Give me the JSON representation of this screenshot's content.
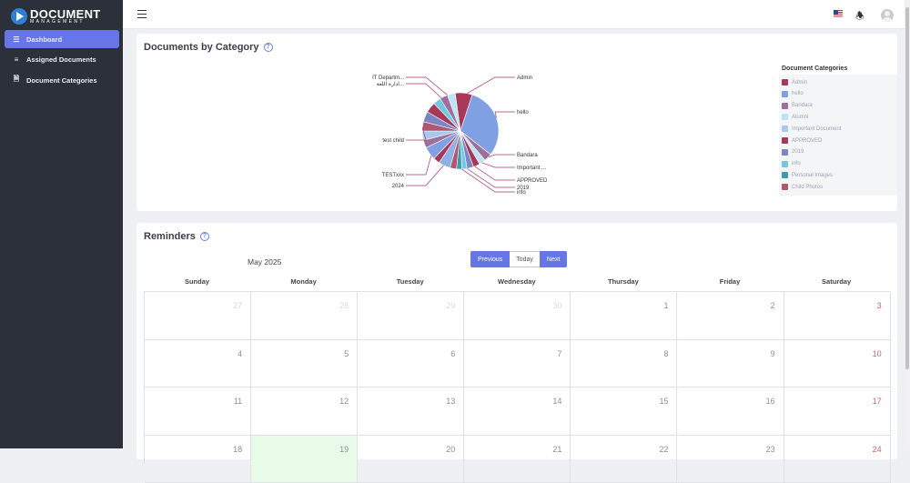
{
  "app": {
    "logo_title": "DOCUMENT",
    "logo_subtitle": "MANAGEMENT"
  },
  "sidebar": {
    "items": [
      {
        "label": "Dashboard",
        "icon": "layers-icon",
        "active": true
      },
      {
        "label": "Assigned Documents",
        "icon": "list-icon",
        "active": false
      },
      {
        "label": "Document Categories",
        "icon": "file-icon",
        "active": false
      }
    ]
  },
  "topbar": {
    "language_flag": "us-flag-icon",
    "notifications_icon": "bell-icon",
    "profile_icon": "avatar"
  },
  "documents_card": {
    "title": "Documents by Category",
    "legend_title": "Document Categories"
  },
  "chart_data": {
    "type": "pie",
    "title": "Documents by Category",
    "labels": [
      "Admin",
      "hello",
      "Bandara",
      "Important ...",
      "APPROVED",
      "2019",
      "info",
      "2024",
      "TESTxxx",
      "test child",
      "ادارة اللغة...",
      "IT Departm..."
    ],
    "legend": [
      {
        "name": "Admin",
        "color": "#a8385a"
      },
      {
        "name": "hello",
        "color": "#7fa1e3"
      },
      {
        "name": "Bandara",
        "color": "#9b6f9e"
      },
      {
        "name": "Alumni",
        "color": "#bfe3f2"
      },
      {
        "name": "Important Document",
        "color": "#a8c8ee"
      },
      {
        "name": "APPROVED",
        "color": "#a8385a"
      },
      {
        "name": "2019",
        "color": "#7c86c4"
      },
      {
        "name": "info",
        "color": "#73c7e0"
      },
      {
        "name": "Personal Images",
        "color": "#3f9ab0"
      },
      {
        "name": "Child Photos",
        "color": "#b0566f"
      }
    ],
    "legend_position": "right"
  },
  "reminders_card": {
    "title": "Reminders",
    "month_label": "May 2025",
    "buttons": {
      "previous": "Previous",
      "today": "Today",
      "next": "Next"
    },
    "weekdays": [
      "Sunday",
      "Monday",
      "Tuesday",
      "Wednesday",
      "Thursday",
      "Friday",
      "Saturday"
    ],
    "weeks": [
      [
        "27",
        "28",
        "29",
        "30",
        "1",
        "2",
        "3"
      ],
      [
        "4",
        "5",
        "6",
        "7",
        "8",
        "9",
        "10"
      ],
      [
        "11",
        "12",
        "13",
        "14",
        "15",
        "16",
        "17"
      ],
      [
        "18",
        "19",
        "20",
        "21",
        "22",
        "23",
        "24"
      ]
    ],
    "today_date": "19"
  }
}
